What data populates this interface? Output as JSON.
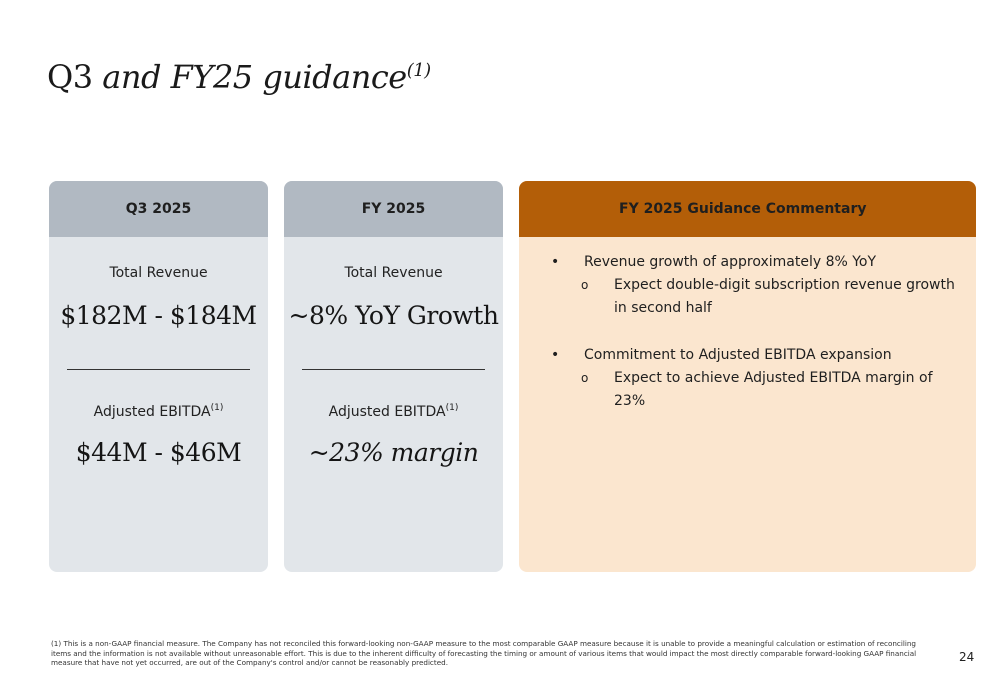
{
  "title": {
    "regular": "Q3",
    "italic": "and FY25 guidance",
    "superscript": "(1)"
  },
  "cards": {
    "q3": {
      "header": "Q3 2025",
      "revenue_label": "Total Revenue",
      "revenue_value": "$182M - $184M",
      "ebitda_label": "Adjusted EBITDA",
      "ebitda_sup": "(1)",
      "ebitda_value": "$44M - $46M"
    },
    "fy": {
      "header": "FY 2025",
      "revenue_label": "Total Revenue",
      "revenue_value": "~8% YoY Growth",
      "ebitda_label": "Adjusted EBITDA",
      "ebitda_sup": "(1)",
      "ebitda_value": "~23% margin"
    },
    "commentary": {
      "header": "FY 2025 Guidance Commentary",
      "bullet_glyph": "•",
      "sub_glyph": "o",
      "items": [
        {
          "text": "Revenue growth of approximately 8% YoY",
          "sub": "Expect double-digit subscription revenue growth in second half"
        },
        {
          "text": "Commitment to Adjusted EBITDA expansion",
          "sub": "Expect to achieve Adjusted EBITDA margin of 23%"
        }
      ]
    }
  },
  "footnote": "(1) This is a non-GAAP financial measure. The Company has not reconciled this forward-looking non-GAAP measure to the most comparable GAAP measure because it is unable to provide a meaningful calculation or estimation of reconciling items and the information is not available without unreasonable effort. This is due to the inherent difficulty of forecasting the timing or amount of various items that would impact the most directly comparable forward-looking GAAP financial measure that have not yet occurred, are out of the Company's control and/or cannot be reasonably predicted.",
  "page_number": "24",
  "colors": {
    "gray_header": "#b1b9c2",
    "gray_body": "#e2e6ea",
    "orange_header": "#b35e08",
    "orange_body": "#fbe6cf"
  }
}
